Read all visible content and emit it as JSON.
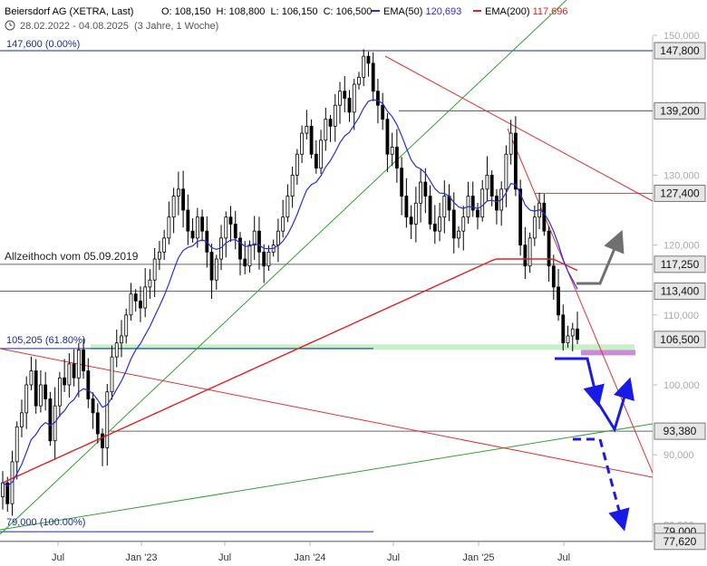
{
  "header": {
    "title": "Beiersdorf AG (XETRA, Last)",
    "ohlc": "O: 108,150  H: 108,800  L: 106,150  C: 106,500",
    "ema50_label": "EMA(50)",
    "ema50_value": "120,693",
    "ema200_label": "EMA(200)",
    "ema200_value": "117,696",
    "range": "28.02.2022 - 04.08.2025  (3 Jahre, 1 Woche)"
  },
  "colors": {
    "candle": "#000000",
    "ema50": "#2a2ae0",
    "ema200": "#e02020",
    "trend_red": "#e03030",
    "trend_green": "#30a030",
    "fib_blue": "#1a2a9a",
    "support_green": "#9be39b",
    "target_pink": "#c98ad6",
    "arrow_blue": "#1a1ae6",
    "arrow_gray": "#707070"
  },
  "annotations": {
    "fib_top": "147,600 (0.00%)",
    "fib_mid": "105,205 (61.80%)",
    "fib_low": "79,000 (100.00%)",
    "ath": "Allzeithoch vom 05.09.2019"
  },
  "chart_data": {
    "type": "candlestick",
    "title": "Beiersdorf AG (XETRA, Last)",
    "x_ticks": [
      "Jul",
      "Jan '23",
      "Jul",
      "Jan '24",
      "Jul",
      "Jan '25",
      "Jul"
    ],
    "y_ticks": [
      "150,000",
      "140,000",
      "130,000",
      "120,000",
      "110,000",
      "100,000",
      "90,000",
      "80,000"
    ],
    "ylim": [
      77,
      152
    ],
    "horizontal_levels": [
      "147,800",
      "139,200",
      "127,400",
      "117,250",
      "113,400",
      "106,500",
      "93,380",
      "79,000",
      "77,620"
    ],
    "last_close": 106.5,
    "ema50_last": 120.693,
    "ema200_last": 117.696,
    "fib_levels": [
      {
        "price": 147.6,
        "pct": "0.00%"
      },
      {
        "price": 105.205,
        "pct": "61.80%"
      },
      {
        "price": 79.0,
        "pct": "100.00%"
      }
    ],
    "approx_weekly_closes": [
      86,
      83,
      89,
      94,
      96,
      100,
      102,
      97,
      100,
      98,
      92,
      97,
      101,
      100,
      103,
      101,
      105,
      102,
      98,
      96,
      93,
      91,
      99,
      104,
      106,
      107,
      110,
      113,
      112,
      111,
      114,
      115,
      118,
      119,
      121,
      124,
      127,
      128,
      125,
      122,
      121,
      124,
      122,
      119,
      115,
      118,
      121,
      124,
      123,
      121,
      118,
      117,
      120,
      122,
      119,
      117,
      119,
      120,
      122,
      124,
      127,
      130,
      133,
      136,
      137,
      133,
      131,
      135,
      138,
      137,
      140,
      142,
      141,
      139,
      143,
      144,
      147,
      146,
      142,
      140,
      138,
      133,
      134,
      131,
      127,
      124,
      123,
      126,
      129,
      127,
      123,
      122,
      124,
      127,
      125,
      121,
      122,
      124,
      127,
      125,
      124,
      128,
      130,
      127,
      125,
      128,
      133,
      136,
      128,
      120,
      117,
      121,
      124,
      126,
      122,
      117,
      114,
      110,
      106,
      107,
      108,
      106.5
    ]
  }
}
